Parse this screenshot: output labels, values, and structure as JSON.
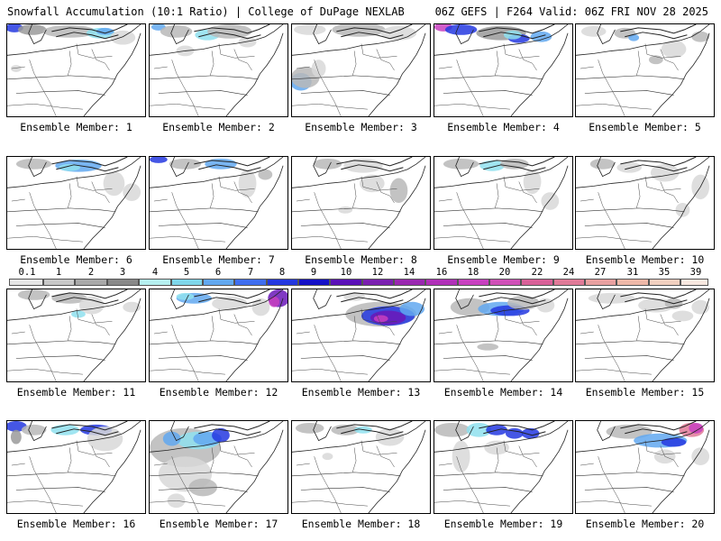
{
  "header": {
    "title": "Snowfall Accumulation (10:1 Ratio) | College of DuPage NEXLAB",
    "run_info": "06Z GEFS | F264 Valid: 06Z FRI NOV 28 2025"
  },
  "legend": {
    "values": [
      "0.1",
      "1",
      "2",
      "3",
      "4",
      "5",
      "6",
      "7",
      "8",
      "9",
      "10",
      "12",
      "14",
      "16",
      "18",
      "20",
      "22",
      "24",
      "27",
      "31",
      "35",
      "39"
    ],
    "colors": [
      "#e6e6e6",
      "#c8c8c8",
      "#a9a9a9",
      "#898989",
      "#b5f0f0",
      "#7fd6ea",
      "#62a8f0",
      "#3f6ef0",
      "#2438e0",
      "#1410c8",
      "#5a10b8",
      "#7a20b0",
      "#9a28b0",
      "#b030b8",
      "#c840c0",
      "#d050b8",
      "#d86098",
      "#e07a98",
      "#e8a0a0",
      "#eeb8a8",
      "#f2d0c0",
      "#f8e8e0"
    ]
  },
  "members": [
    {
      "label": "Ensemble Member: 1"
    },
    {
      "label": "Ensemble Member: 2"
    },
    {
      "label": "Ensemble Member: 3"
    },
    {
      "label": "Ensemble Member: 4"
    },
    {
      "label": "Ensemble Member: 5"
    },
    {
      "label": "Ensemble Member: 6"
    },
    {
      "label": "Ensemble Member: 7"
    },
    {
      "label": "Ensemble Member: 8"
    },
    {
      "label": "Ensemble Member: 9"
    },
    {
      "label": "Ensemble Member: 10"
    },
    {
      "label": "Ensemble Member: 11"
    },
    {
      "label": "Ensemble Member: 12"
    },
    {
      "label": "Ensemble Member: 13"
    },
    {
      "label": "Ensemble Member: 14"
    },
    {
      "label": "Ensemble Member: 15"
    },
    {
      "label": "Ensemble Member: 16"
    },
    {
      "label": "Ensemble Member: 17"
    },
    {
      "label": "Ensemble Member: 18"
    },
    {
      "label": "Ensemble Member: 19"
    },
    {
      "label": "Ensemble Member: 20"
    }
  ]
}
